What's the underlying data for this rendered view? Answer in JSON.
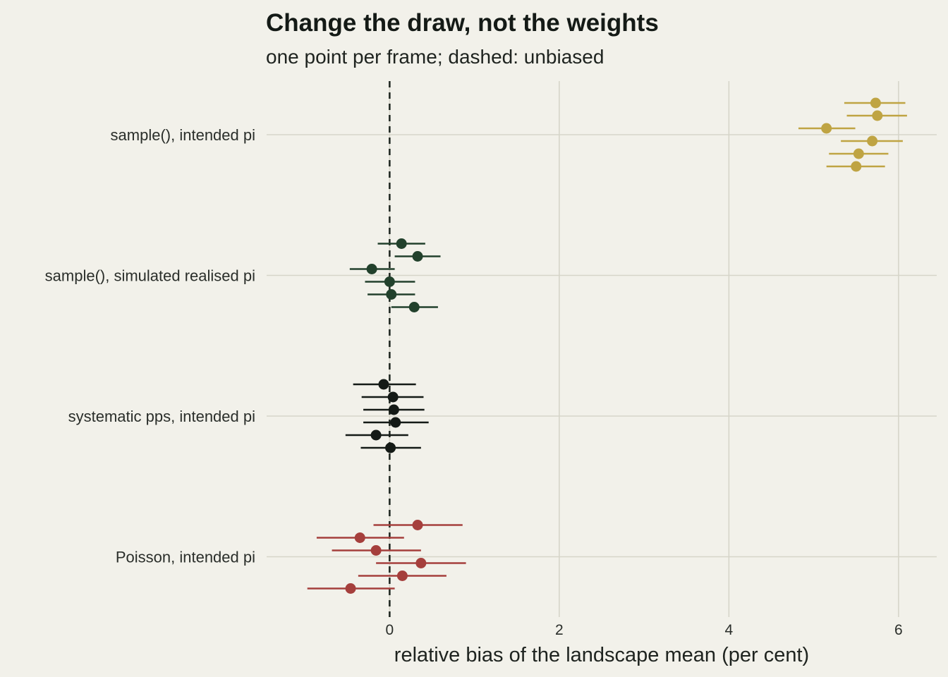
{
  "chart_data": {
    "type": "scatter",
    "title": "Change the draw, not the weights",
    "subtitle": "one point per frame; dashed: unbiased",
    "xlabel": "relative bias of the landscape mean (per cent)",
    "ylabel": "",
    "xlim": [
      -1.45,
      6.45
    ],
    "x_ticks": [
      "0",
      "2",
      "4",
      "6"
    ],
    "reference_line": {
      "x": 0,
      "style": "dashed"
    },
    "grid": true,
    "legend": "none",
    "categories": [
      "sample(), intended pi",
      "sample(), simulated realised pi",
      "systematic pps, intended pi",
      "Poisson, intended pi"
    ],
    "series": [
      {
        "category": "sample(), intended pi",
        "color": "#bfa443",
        "points": [
          {
            "estimate": 5.73,
            "low": 5.36,
            "high": 6.08
          },
          {
            "estimate": 5.75,
            "low": 5.39,
            "high": 6.1
          },
          {
            "estimate": 5.15,
            "low": 4.82,
            "high": 5.49
          },
          {
            "estimate": 5.69,
            "low": 5.32,
            "high": 6.05
          },
          {
            "estimate": 5.53,
            "low": 5.18,
            "high": 5.88
          },
          {
            "estimate": 5.5,
            "low": 5.15,
            "high": 5.84
          }
        ]
      },
      {
        "category": "sample(), simulated realised pi",
        "color": "#22412c",
        "points": [
          {
            "estimate": 0.14,
            "low": -0.14,
            "high": 0.42
          },
          {
            "estimate": 0.33,
            "low": 0.06,
            "high": 0.6
          },
          {
            "estimate": -0.21,
            "low": -0.47,
            "high": 0.06
          },
          {
            "estimate": 0.0,
            "low": -0.29,
            "high": 0.3
          },
          {
            "estimate": 0.02,
            "low": -0.26,
            "high": 0.3
          },
          {
            "estimate": 0.29,
            "low": 0.02,
            "high": 0.57
          }
        ]
      },
      {
        "category": "systematic pps, intended pi",
        "color": "#141a16",
        "points": [
          {
            "estimate": -0.07,
            "low": -0.43,
            "high": 0.31
          },
          {
            "estimate": 0.04,
            "low": -0.33,
            "high": 0.4
          },
          {
            "estimate": 0.05,
            "low": -0.31,
            "high": 0.41
          },
          {
            "estimate": 0.07,
            "low": -0.31,
            "high": 0.46
          },
          {
            "estimate": -0.16,
            "low": -0.52,
            "high": 0.22
          },
          {
            "estimate": 0.01,
            "low": -0.34,
            "high": 0.37
          }
        ]
      },
      {
        "category": "Poisson, intended pi",
        "color": "#a53f3c",
        "points": [
          {
            "estimate": 0.33,
            "low": -0.19,
            "high": 0.86
          },
          {
            "estimate": -0.35,
            "low": -0.86,
            "high": 0.17
          },
          {
            "estimate": -0.16,
            "low": -0.68,
            "high": 0.37
          },
          {
            "estimate": 0.37,
            "low": -0.16,
            "high": 0.9
          },
          {
            "estimate": 0.15,
            "low": -0.37,
            "high": 0.67
          },
          {
            "estimate": -0.46,
            "low": -0.97,
            "high": 0.06
          }
        ]
      }
    ]
  }
}
